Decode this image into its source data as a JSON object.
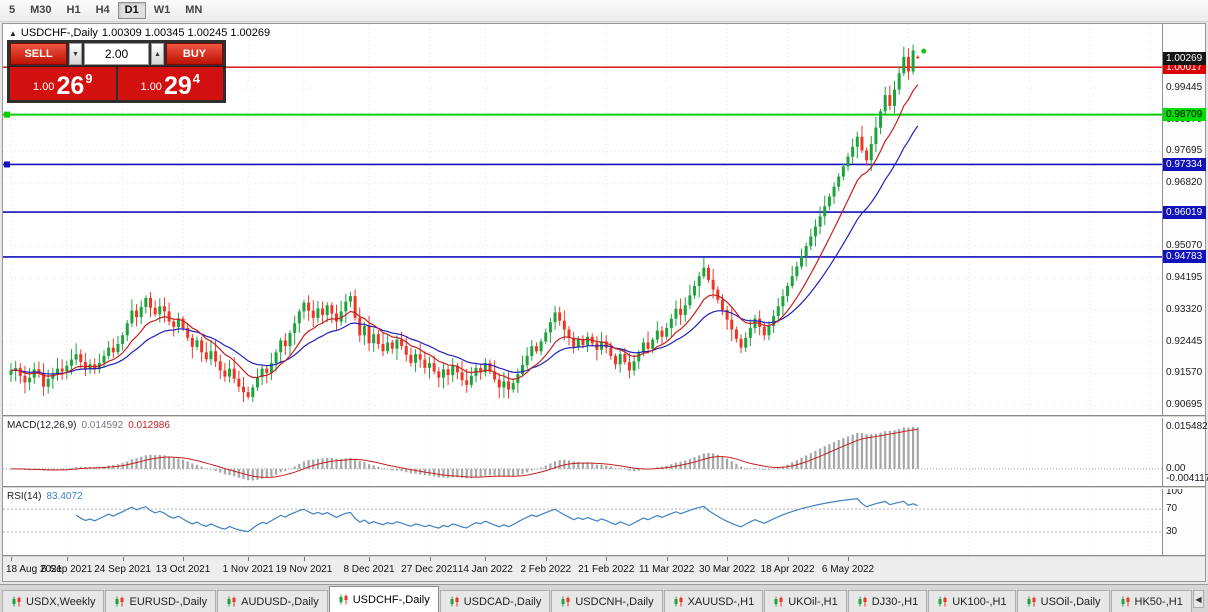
{
  "toolbar": {
    "timeframes": [
      "5",
      "M30",
      "H1",
      "H4",
      "D1",
      "W1",
      "MN"
    ],
    "active_timeframe": "D1"
  },
  "chart": {
    "collapse_icon": "▲",
    "title": "USDCHF-,Daily",
    "ohlc": "1.00309 1.00345 1.00245 1.00269"
  },
  "trade_panel": {
    "sell_label": "SELL",
    "buy_label": "BUY",
    "volume": "2.00",
    "spin_down_icon": "▼",
    "spin_up_icon": "▲",
    "sell_price": {
      "prefix": "1.00",
      "pips": "26",
      "pipette": "9"
    },
    "buy_price": {
      "prefix": "1.00",
      "pips": "29",
      "pipette": "4"
    }
  },
  "price_axis": {
    "current": {
      "label": "1.00269",
      "bg": "#161616",
      "text": "#ffffff"
    },
    "level_badges": [
      {
        "label": "1.00017",
        "price": 1.00017,
        "bg": "#dd0000",
        "text": "#ffffff"
      },
      {
        "label": "0.98709",
        "price": 0.98709,
        "bg": "#00dd00",
        "text": "#000000"
      },
      {
        "label": "0.97334",
        "price": 0.97334,
        "bg": "#1212bb",
        "text": "#ffffff"
      },
      {
        "label": "0.96019",
        "price": 0.96019,
        "bg": "#1212bb",
        "text": "#ffffff"
      },
      {
        "label": "0.94783",
        "price": 0.94783,
        "bg": "#1212bb",
        "text": "#ffffff"
      }
    ],
    "ticks": [
      {
        "label": "0.99445",
        "price": 0.99445
      },
      {
        "label": "0.98570",
        "price": 0.9857
      },
      {
        "label": "0.97695",
        "price": 0.97695
      },
      {
        "label": "0.96820",
        "price": 0.9682
      },
      {
        "label": "0.95070",
        "price": 0.9507
      },
      {
        "label": "0.94195",
        "price": 0.94195
      },
      {
        "label": "0.93320",
        "price": 0.9332
      },
      {
        "label": "0.92445",
        "price": 0.92445
      },
      {
        "label": "0.91570",
        "price": 0.9157
      },
      {
        "label": "0.90695",
        "price": 0.90695
      }
    ]
  },
  "chart_data": {
    "type": "candlestick",
    "symbol": "USDCHF-",
    "timeframe": "Daily",
    "current_candle": {
      "open": 1.00309,
      "high": 1.00345,
      "low": 1.00245,
      "close": 1.00269
    },
    "y_domain": [
      0.9042,
      1.0121
    ],
    "up_color": "#1da33c",
    "down_color": "#ee3626",
    "closes": [
      0.9165,
      0.9172,
      0.915,
      0.9132,
      0.9145,
      0.9168,
      0.9158,
      0.912,
      0.9142,
      0.9155,
      0.917,
      0.9162,
      0.9178,
      0.9195,
      0.921,
      0.9188,
      0.917,
      0.9182,
      0.9168,
      0.9186,
      0.9205,
      0.9228,
      0.9215,
      0.9238,
      0.9262,
      0.9295,
      0.933,
      0.9312,
      0.934,
      0.9365,
      0.9338,
      0.932,
      0.9342,
      0.9328,
      0.93,
      0.9285,
      0.9308,
      0.9282,
      0.9255,
      0.923,
      0.9248,
      0.9215,
      0.9196,
      0.9218,
      0.919,
      0.9165,
      0.9148,
      0.917,
      0.9142,
      0.912,
      0.9105,
      0.9092,
      0.9118,
      0.9146,
      0.917,
      0.9158,
      0.9185,
      0.9215,
      0.9248,
      0.9232,
      0.9268,
      0.9295,
      0.9328,
      0.9352,
      0.933,
      0.931,
      0.9336,
      0.9318,
      0.9345,
      0.9322,
      0.93,
      0.9328,
      0.9355,
      0.937,
      0.931,
      0.9262,
      0.9288,
      0.924,
      0.9265,
      0.9238,
      0.9218,
      0.9242,
      0.9225,
      0.925,
      0.9232,
      0.9208,
      0.9186,
      0.921,
      0.9195,
      0.9172,
      0.9185,
      0.9162,
      0.9145,
      0.9168,
      0.9152,
      0.9178,
      0.916,
      0.9138,
      0.9125,
      0.915,
      0.9172,
      0.916,
      0.9185,
      0.9162,
      0.914,
      0.9118,
      0.9135,
      0.9112,
      0.913,
      0.9155,
      0.918,
      0.9205,
      0.9232,
      0.9218,
      0.9245,
      0.927,
      0.9298,
      0.9325,
      0.9302,
      0.9278,
      0.9255,
      0.923,
      0.9252,
      0.9235,
      0.9258,
      0.924,
      0.9222,
      0.9245,
      0.9228,
      0.9205,
      0.9182,
      0.921,
      0.9188,
      0.9165,
      0.919,
      0.9215,
      0.9242,
      0.9225,
      0.925,
      0.9275,
      0.9258,
      0.9282,
      0.9308,
      0.9335,
      0.9318,
      0.9345,
      0.9372,
      0.9398,
      0.9425,
      0.9448,
      0.9415,
      0.9388,
      0.936,
      0.9332,
      0.9305,
      0.9278,
      0.9252,
      0.9228,
      0.9255,
      0.9282,
      0.9308,
      0.9285,
      0.9262,
      0.9288,
      0.9315,
      0.9342,
      0.937,
      0.9398,
      0.9425,
      0.9452,
      0.948,
      0.9508,
      0.9535,
      0.9562,
      0.959,
      0.9618,
      0.9645,
      0.9672,
      0.97,
      0.9728,
      0.9755,
      0.9782,
      0.981,
      0.9772,
      0.9745,
      0.979,
      0.9835,
      0.988,
      0.9925,
      0.9895,
      0.994,
      0.9985,
      1.003,
      0.999,
      1.0048,
      1.00269
    ],
    "wick_overrides": {
      "7": {
        "l": 0.9095
      },
      "29": {
        "h": 0.9372
      },
      "51": {
        "l": 0.9085
      },
      "73": {
        "h": 0.9382
      },
      "117": {
        "h": 0.9343
      },
      "149": {
        "h": 0.9478
      },
      "194": {
        "h": 1.0064
      },
      "195": {
        "o": 1.00309,
        "h": 1.00345,
        "l": 1.00245
      }
    },
    "overlays": {
      "ma_fast": {
        "period": 10,
        "color": "#c42020"
      },
      "ma_slow": {
        "period": 21,
        "color": "#2020bb"
      }
    },
    "hlines": [
      {
        "price": 1.00017,
        "color": "#dd0000",
        "width": 1.4,
        "handle": false
      },
      {
        "price": 0.98709,
        "color": "#00cc00",
        "width": 2,
        "handle": true
      },
      {
        "price": 0.97334,
        "color": "#1212bb",
        "width": 1.6,
        "handle": true
      },
      {
        "price": 0.96019,
        "color": "#1212bb",
        "width": 1.6,
        "handle": false
      },
      {
        "price": 0.94783,
        "color": "#1212bb",
        "width": 1.6,
        "handle": false
      }
    ],
    "marker": {
      "price": 1.0046,
      "color": "#18c418"
    },
    "x_labels": [
      {
        "label": "18 Aug 2021",
        "index": 0
      },
      {
        "label": "6 Sep 2021",
        "index": 12
      },
      {
        "label": "24 Sep 2021",
        "index": 24
      },
      {
        "label": "13 Oct 2021",
        "index": 37
      },
      {
        "label": "1 Nov 2021",
        "index": 51
      },
      {
        "label": "19 Nov 2021",
        "index": 63
      },
      {
        "label": "8 Dec 2021",
        "index": 77
      },
      {
        "label": "27 Dec 2021",
        "index": 90
      },
      {
        "label": "14 Jan 2022",
        "index": 102
      },
      {
        "label": "2 Feb 2022",
        "index": 115
      },
      {
        "label": "21 Feb 2022",
        "index": 128
      },
      {
        "label": "11 Mar 2022",
        "index": 141
      },
      {
        "label": "30 Mar 2022",
        "index": 154
      },
      {
        "label": "18 Apr 2022",
        "index": 167
      },
      {
        "label": "6 May 2022",
        "index": 180
      }
    ]
  },
  "macd": {
    "name": "MACD(12,26,9)",
    "value_main": "0.014592",
    "value_signal": "0.012986",
    "fast": 12,
    "slow": 26,
    "signal": 9,
    "scale_labels": {
      "top": "0.015482",
      "zero": "0.00",
      "bottom": "-0.004117"
    },
    "histogram_color": "#a6a6a6",
    "signal_color": "#c42020"
  },
  "rsi": {
    "name": "RSI(14)",
    "value": "83.4072",
    "period": 14,
    "levels": [
      100,
      70,
      30
    ],
    "line_color": "#3e82c4"
  },
  "tabs": {
    "scroll_left_icon": "◀",
    "items": [
      {
        "label": "USDX,Weekly",
        "active": false
      },
      {
        "label": "EURUSD-,Daily",
        "active": false
      },
      {
        "label": "AUDUSD-,Daily",
        "active": false
      },
      {
        "label": "USDCHF-,Daily",
        "active": true
      },
      {
        "label": "USDCAD-,Daily",
        "active": false
      },
      {
        "label": "USDCNH-,Daily",
        "active": false
      },
      {
        "label": "XAUUSD-,H1",
        "active": false
      },
      {
        "label": "UKOil-,H1",
        "active": false
      },
      {
        "label": "DJ30-,H1",
        "active": false
      },
      {
        "label": "UK100-,H1",
        "active": false
      },
      {
        "label": "USOil-,Daily",
        "active": false
      },
      {
        "label": "HK50-,H1",
        "active": false
      }
    ]
  }
}
